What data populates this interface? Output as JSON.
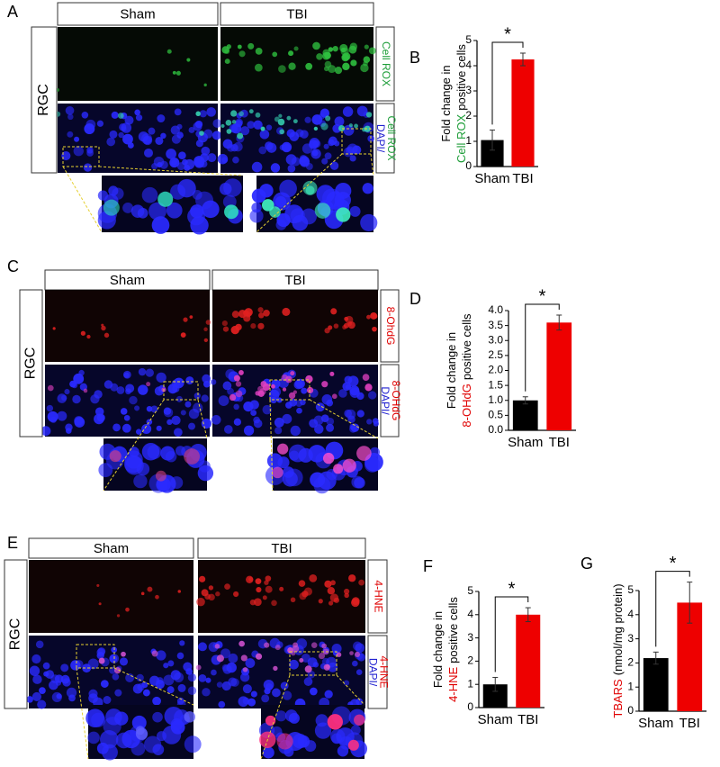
{
  "panels": [
    {
      "label": "A",
      "columns": [
        "Sham",
        "TBI"
      ],
      "row_label": "RGC",
      "channels": [
        [
          [
            {
              "text": "Cell ROX",
              "color": "#1f9e3a"
            }
          ]
        ],
        [
          [
            {
              "text": "DAPI/",
              "color": "#2020d0"
            }
          ],
          [
            {
              "text": "Cell ROX",
              "color": "#1f9e3a"
            }
          ]
        ]
      ]
    },
    {
      "label": "C",
      "columns": [
        "Sham",
        "TBI"
      ],
      "row_label": "RGC",
      "channels": [
        [
          [
            {
              "text": "8-OhdG",
              "color": "#e00000"
            }
          ]
        ],
        [
          [
            {
              "text": "DAPI/",
              "color": "#2020d0"
            }
          ],
          [
            {
              "text": "8-OHdG",
              "color": "#e00000"
            }
          ]
        ]
      ]
    },
    {
      "label": "E",
      "columns": [
        "Sham",
        "TBI"
      ],
      "row_label": "RGC",
      "channels": [
        [
          [
            {
              "text": "4-HNE",
              "color": "#e00000"
            }
          ]
        ],
        [
          [
            {
              "text": "DAPI/",
              "color": "#2020d0"
            }
          ],
          [
            {
              "text": "4-HNE",
              "color": "#e00000"
            }
          ]
        ]
      ]
    }
  ],
  "chart_data": [
    {
      "type": "bar",
      "panel": "B",
      "ylabel": [
        [
          {
            "text": "Fold change in",
            "color": "#000000"
          }
        ],
        [
          {
            "text": "Cell ROX",
            "color": "#1f9e3a"
          },
          {
            "text": "positive cells",
            "color": "#000000"
          }
        ]
      ],
      "categories": [
        "Sham",
        "TBI"
      ],
      "values": [
        1.05,
        4.25
      ],
      "errors": [
        0.4,
        0.25
      ],
      "colors": [
        "#000000",
        "#ee0000"
      ],
      "ylim": [
        0,
        5
      ],
      "yticks": [
        0,
        1,
        2,
        3,
        4,
        5
      ],
      "significance": "*"
    },
    {
      "type": "bar",
      "panel": "D",
      "ylabel": [
        [
          {
            "text": "Fold change in",
            "color": "#000000"
          }
        ],
        [
          {
            "text": "8-OHdG",
            "color": "#e00000"
          },
          {
            "text": "positive cells",
            "color": "#000000"
          }
        ]
      ],
      "categories": [
        "Sham",
        "TBI"
      ],
      "values": [
        1.0,
        3.6
      ],
      "errors": [
        0.12,
        0.25
      ],
      "colors": [
        "#000000",
        "#ee0000"
      ],
      "ylim": [
        0,
        4
      ],
      "yticks": [
        {
          "value": 0,
          "label": "0.0"
        },
        {
          "value": 0.5,
          "label": "0.5"
        },
        {
          "value": 1,
          "label": "1.0"
        },
        {
          "value": 1.5,
          "label": "1.5"
        },
        {
          "value": 2,
          "label": "2.0"
        },
        {
          "value": 2.5,
          "label": "2.5"
        },
        {
          "value": 3,
          "label": "3.0"
        },
        {
          "value": 3.5,
          "label": "3.5"
        },
        {
          "value": 4,
          "label": "4.0"
        }
      ],
      "significance": "*"
    },
    {
      "type": "bar",
      "panel": "F",
      "ylabel": [
        [
          {
            "text": "Fold change in",
            "color": "#000000"
          }
        ],
        [
          {
            "text": "4-HNE",
            "color": "#e00000"
          },
          {
            "text": "positive cells",
            "color": "#000000"
          }
        ]
      ],
      "categories": [
        "Sham",
        "TBI"
      ],
      "values": [
        1.0,
        4.0
      ],
      "errors": [
        0.3,
        0.3
      ],
      "colors": [
        "#000000",
        "#ee0000"
      ],
      "ylim": [
        0,
        5
      ],
      "yticks": [
        0,
        1,
        2,
        3,
        4,
        5
      ],
      "significance": "*"
    },
    {
      "type": "bar",
      "panel": "G",
      "ylabel": [
        [
          {
            "text": "TBARS",
            "color": "#e00000"
          },
          {
            "text": "(nmol/mg protein)",
            "color": "#000000"
          }
        ]
      ],
      "categories": [
        "Sham",
        "TBI"
      ],
      "values": [
        2.2,
        4.5
      ],
      "errors": [
        0.25,
        0.85
      ],
      "colors": [
        "#000000",
        "#ee0000"
      ],
      "ylim": [
        0,
        5
      ],
      "yticks": [
        0,
        1,
        2,
        3,
        4,
        5
      ],
      "significance": "*"
    }
  ]
}
